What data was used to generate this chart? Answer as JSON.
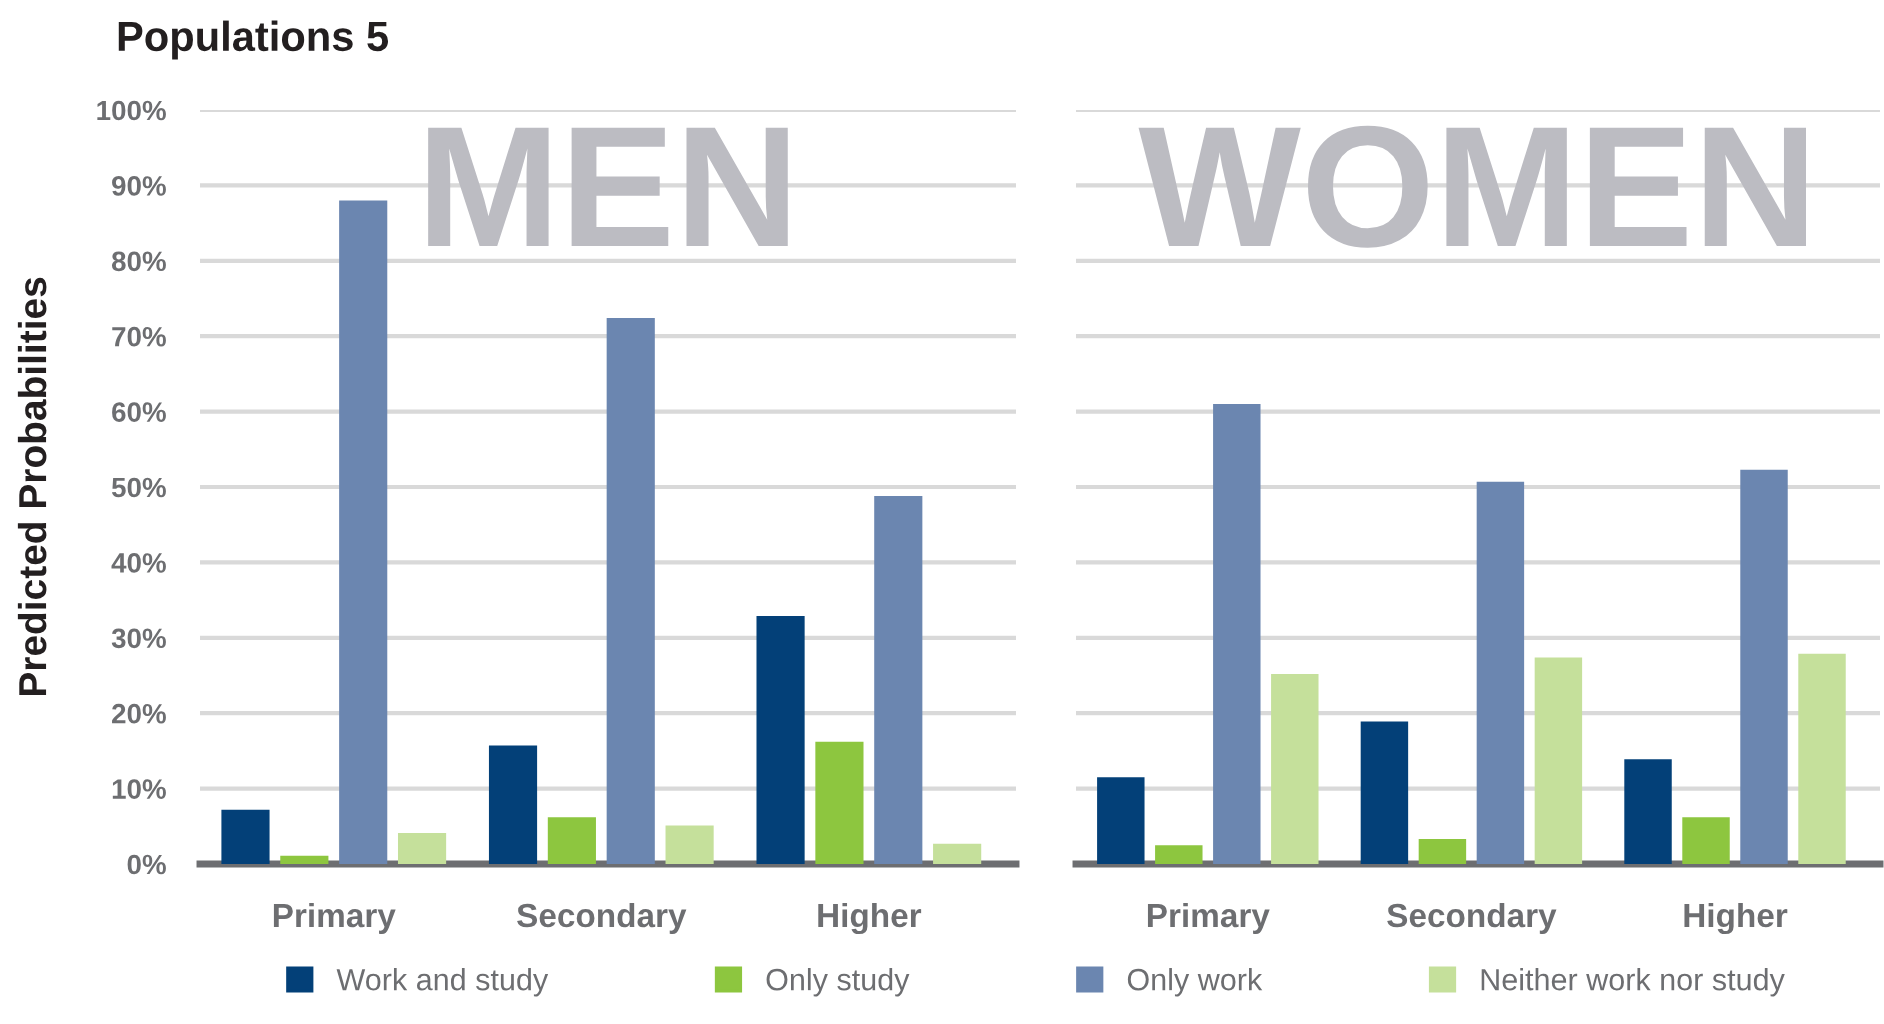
{
  "chart_data": [
    {
      "type": "bar",
      "title": "Populations 5",
      "annotations": [
        "MEN"
      ],
      "ylabel": "Predicted Probabilities",
      "categories": [
        "Primary",
        "Secondary",
        "Higher"
      ],
      "series": [
        {
          "name": "Work and study",
          "color": "#034078",
          "values": [
            7.2,
            15.7,
            32.9
          ]
        },
        {
          "name": "Only study",
          "color": "#8dc63f",
          "values": [
            1.1,
            6.2,
            16.2
          ]
        },
        {
          "name": "Only work",
          "color": "#6b86b0",
          "values": [
            88.0,
            72.4,
            48.8
          ]
        },
        {
          "name": "Neither work nor study",
          "color": "#c5e09b",
          "values": [
            4.1,
            5.1,
            2.7
          ]
        }
      ],
      "ylim": [
        0,
        100
      ],
      "yticks": [
        {
          "value": 0,
          "label": "0%"
        },
        {
          "value": 10,
          "label": "10%"
        },
        {
          "value": 20,
          "label": "20%"
        },
        {
          "value": 30,
          "label": "30%"
        },
        {
          "value": 40,
          "label": "40%"
        },
        {
          "value": 50,
          "label": "50%"
        },
        {
          "value": 60,
          "label": "60%"
        },
        {
          "value": 70,
          "label": "70%"
        },
        {
          "value": 80,
          "label": "80%"
        },
        {
          "value": 90,
          "label": "90%"
        },
        {
          "value": 100,
          "label": "100%"
        }
      ],
      "grid": "y",
      "legend": "bottom"
    },
    {
      "type": "bar",
      "annotations": [
        "WOMEN"
      ],
      "categories": [
        "Primary",
        "Secondary",
        "Higher"
      ],
      "series": [
        {
          "color": "#034078",
          "values": [
            11.5,
            18.9,
            13.9
          ]
        },
        {
          "color": "#8dc63f",
          "values": [
            2.5,
            3.3,
            6.2
          ]
        },
        {
          "color": "#6b86b0",
          "values": [
            61.0,
            50.7,
            52.3
          ]
        },
        {
          "color": "#c5e09b",
          "values": [
            25.2,
            27.4,
            27.9
          ]
        }
      ],
      "ylim": [
        0,
        100
      ],
      "yticks": [
        0,
        10,
        20,
        30,
        40,
        50,
        60,
        70,
        80,
        90,
        100
      ],
      "tick_labels": "x",
      "grid": "y",
      "legend": false
    }
  ]
}
